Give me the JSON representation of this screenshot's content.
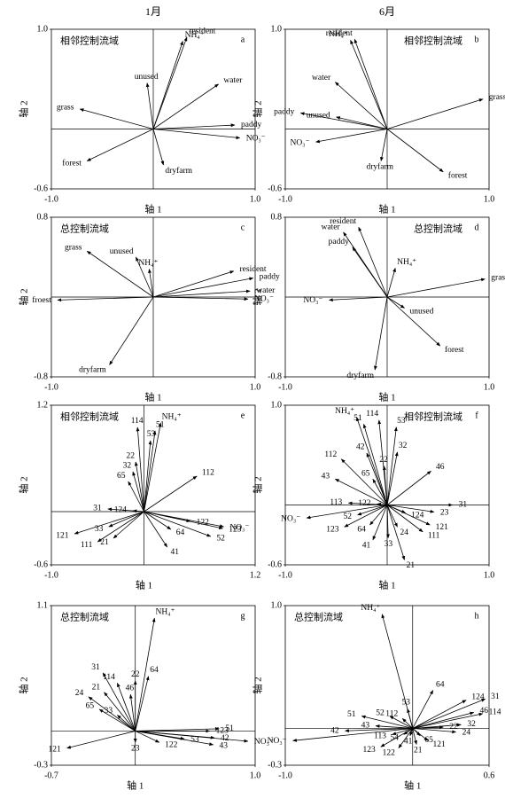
{
  "column_titles": [
    "1月",
    "6月"
  ],
  "chart_data": [
    {
      "type": "biplot",
      "letter": "a",
      "label": "相邻控制流域",
      "label_position": "left",
      "xlabel": "轴 1",
      "ylabel": "轴 2",
      "xlim": [
        -1,
        1
      ],
      "ylim": [
        -0.6,
        1
      ],
      "xticks": [
        {
          "value": -1,
          "label": "-1.0"
        },
        {
          "value": 1,
          "label": "1.0"
        }
      ],
      "yticks": [
        -0.6,
        {
          "value": 1,
          "label": "1.0"
        }
      ],
      "vectors": {
        "labels": [
          "resident",
          "NH₄⁺",
          "water",
          "unused",
          "grass",
          "paddy",
          "NO₃⁻",
          "forest",
          "dryfarm"
        ],
        "x": [
          0.33,
          0.29,
          0.64,
          -0.06,
          -0.72,
          0.8,
          0.85,
          -0.65,
          0.1
        ],
        "y": [
          0.92,
          0.88,
          0.45,
          0.46,
          0.2,
          0.04,
          -0.09,
          -0.32,
          -0.36
        ]
      }
    },
    {
      "type": "biplot",
      "letter": "b",
      "label": "相邻控制流域",
      "label_position": "right",
      "xlabel": "轴 1",
      "ylabel": "轴 2",
      "xlim": [
        -1,
        1
      ],
      "ylim": [
        -0.6,
        1
      ],
      "xticks": [
        {
          "value": -1,
          "label": "-1.0"
        },
        {
          "value": 1,
          "label": "1.0"
        }
      ],
      "yticks": [
        -0.6,
        {
          "value": 1,
          "label": "1.0"
        }
      ],
      "vectors": {
        "labels": [
          "NH₄⁺",
          "resident",
          "water",
          "paddy",
          "unused",
          "grass",
          "NO₃⁻",
          "dryfarm",
          "forest"
        ],
        "x": [
          -0.36,
          -0.32,
          -0.51,
          -0.85,
          -0.5,
          0.94,
          -0.7,
          -0.06,
          0.55
        ],
        "y": [
          0.89,
          0.9,
          0.47,
          0.16,
          0.12,
          0.3,
          -0.13,
          -0.32,
          -0.43
        ]
      }
    },
    {
      "type": "biplot",
      "letter": "c",
      "label": "总控制流域",
      "label_position": "left",
      "xlabel": "轴 1",
      "ylabel": "轴 2",
      "xlim": [
        -1,
        1
      ],
      "ylim": [
        -0.8,
        0.8
      ],
      "xticks": [
        {
          "value": -1,
          "label": "-1.0"
        },
        {
          "value": 1,
          "label": "1.0"
        }
      ],
      "yticks": [
        -0.8,
        0.8
      ],
      "vectors": {
        "labels": [
          "grass",
          "unused",
          "NH₄⁺",
          "resident",
          "paddy",
          "water",
          "NO₃⁻",
          "froest",
          "dryfarm"
        ],
        "x": [
          -0.65,
          -0.17,
          -0.04,
          0.79,
          0.98,
          0.95,
          0.93,
          -0.94,
          -0.43
        ],
        "y": [
          0.46,
          0.4,
          0.28,
          0.26,
          0.19,
          0.06,
          -0.02,
          -0.03,
          -0.68
        ]
      }
    },
    {
      "type": "biplot",
      "letter": "d",
      "label": "总控制流域",
      "label_position": "right",
      "xlabel": "轴 1",
      "ylabel": "轴 2",
      "xlim": [
        -1,
        1
      ],
      "ylim": [
        -0.8,
        0.8
      ],
      "xticks": [
        {
          "value": -1,
          "label": "-1.0"
        },
        {
          "value": 1,
          "label": "1.0"
        }
      ],
      "yticks": [
        -0.8,
        0.8
      ],
      "vectors": {
        "labels": [
          "water",
          "resident",
          "paddy",
          "NH₄⁺",
          "grass",
          "unused",
          "NO₃⁻",
          "forest",
          "dryfarm"
        ],
        "x": [
          -0.43,
          -0.28,
          -0.34,
          0.08,
          0.96,
          0.17,
          -0.57,
          0.52,
          -0.12
        ],
        "y": [
          0.65,
          0.7,
          0.5,
          0.29,
          0.18,
          -0.11,
          -0.03,
          -0.49,
          -0.73
        ]
      }
    },
    {
      "type": "biplot",
      "letter": "e",
      "label": "相邻控制流域",
      "label_position": "left",
      "xlabel": "轴 1",
      "ylabel": "轴 2",
      "xlim": [
        -1,
        1.2
      ],
      "ylim": [
        -0.6,
        1.2
      ],
      "xticks": [
        {
          "value": -1,
          "label": "-1.0"
        },
        1.2
      ],
      "yticks": [
        -0.6,
        1.2
      ],
      "vectors": {
        "labels": [
          "NH₄⁺",
          "51",
          "53",
          "114",
          "22",
          "32",
          "65",
          "112",
          "31",
          "124",
          "121",
          "33",
          "111",
          "21",
          "122",
          "64",
          "123",
          "NO₃⁻",
          "52",
          "41"
        ],
        "x": [
          0.18,
          0.12,
          0.07,
          -0.07,
          -0.09,
          -0.12,
          -0.17,
          0.57,
          -0.39,
          -0.12,
          -0.75,
          -0.38,
          -0.5,
          -0.33,
          0.5,
          0.29,
          0.85,
          0.86,
          0.72,
          0.25
        ],
        "y": [
          1.0,
          0.91,
          0.8,
          0.95,
          0.56,
          0.45,
          0.34,
          0.4,
          0.03,
          0.01,
          -0.25,
          -0.17,
          -0.34,
          -0.3,
          -0.11,
          -0.2,
          -0.19,
          -0.17,
          -0.28,
          -0.4
        ]
      }
    },
    {
      "type": "biplot",
      "letter": "f",
      "label": "相邻控制流域",
      "label_position": "right",
      "xlabel": "轴 1",
      "ylabel": "轴 2",
      "xlim": [
        -1,
        1
      ],
      "ylim": [
        -0.6,
        1
      ],
      "xticks": [
        {
          "value": -1,
          "label": "-1.0"
        },
        {
          "value": 1,
          "label": "1.0"
        }
      ],
      "yticks": [
        -0.6,
        {
          "value": 1,
          "label": "1.0"
        }
      ],
      "vectors": {
        "labels": [
          "NH₄⁺",
          "51",
          "114",
          "53",
          "42",
          "32",
          "22",
          "112",
          "65",
          "43",
          "46",
          "113",
          "122",
          "31",
          "52",
          "NO₃⁻",
          "124",
          "23",
          "121",
          "123",
          "64",
          "24",
          "111",
          "33",
          "41",
          "21"
        ],
        "x": [
          -0.3,
          -0.23,
          -0.08,
          0.09,
          -0.2,
          0.1,
          -0.03,
          -0.45,
          -0.14,
          -0.51,
          0.43,
          -0.38,
          -0.1,
          0.64,
          -0.29,
          -0.79,
          0.18,
          0.46,
          0.42,
          -0.42,
          -0.17,
          0.1,
          0.35,
          0.01,
          -0.14,
          0.17
        ],
        "y": [
          0.88,
          0.81,
          0.85,
          0.78,
          0.52,
          0.53,
          0.39,
          0.46,
          0.26,
          0.26,
          0.34,
          0.02,
          0.01,
          0.0,
          -0.1,
          -0.13,
          -0.08,
          -0.07,
          -0.2,
          -0.22,
          -0.2,
          -0.22,
          -0.27,
          -0.33,
          -0.35,
          -0.55
        ]
      }
    },
    {
      "type": "biplot",
      "letter": "g",
      "label": "总控制流域",
      "label_position": "left",
      "xlabel": "轴 1",
      "ylabel": "轴 2",
      "xlim": [
        -0.7,
        1
      ],
      "ylim": [
        -0.3,
        1.1
      ],
      "xticks": [
        -0.7,
        {
          "value": 1,
          "label": "1.0"
        }
      ],
      "yticks": [
        -0.3,
        1.1
      ],
      "vectors": {
        "labels": [
          "NH₄⁺",
          "64",
          "22",
          "31",
          "114",
          "21",
          "46",
          "24",
          "65",
          "33",
          "121",
          "23",
          "122",
          "53",
          "123",
          "51",
          "42",
          "43",
          "NO₃⁻"
        ],
        "x": [
          0.16,
          0.11,
          0.0,
          -0.27,
          -0.15,
          -0.26,
          -0.04,
          -0.39,
          -0.3,
          -0.15,
          -0.57,
          0.0,
          0.2,
          0.41,
          0.62,
          0.7,
          0.66,
          0.65,
          0.94
        ],
        "y": [
          0.99,
          0.48,
          0.44,
          0.51,
          0.42,
          0.34,
          0.32,
          0.3,
          0.19,
          0.14,
          -0.15,
          -0.1,
          -0.1,
          -0.07,
          0.0,
          0.02,
          -0.06,
          -0.12,
          -0.09
        ]
      }
    },
    {
      "type": "biplot",
      "letter": "h",
      "label": "总控制流域",
      "label_position": "left",
      "xlabel": "轴 1",
      "ylabel": "轴 2",
      "xlim": [
        -1,
        0.6
      ],
      "ylim": [
        -0.3,
        1
      ],
      "xticks": [
        {
          "value": -1,
          "label": "-1.0"
        },
        0.6
      ],
      "yticks": [
        -0.3,
        {
          "value": 1,
          "label": "1.0"
        }
      ],
      "vectors": {
        "labels": [
          "NH₄⁺",
          "64",
          "124",
          "31",
          "46",
          "114",
          "53",
          "52",
          "112",
          "51",
          "43",
          "42",
          "32",
          "24",
          "22",
          "65",
          "113",
          "54",
          "41",
          "121",
          "21",
          "123",
          "122",
          "NO₃⁻"
        ],
        "x": [
          -0.24,
          0.16,
          0.42,
          0.57,
          0.48,
          0.55,
          -0.04,
          -0.18,
          -0.08,
          -0.4,
          -0.29,
          -0.53,
          0.38,
          0.34,
          0.24,
          0.06,
          -0.16,
          -0.07,
          -0.02,
          0.12,
          0.03,
          -0.25,
          -0.11,
          -0.94
        ],
        "y": [
          0.93,
          0.31,
          0.23,
          0.24,
          0.13,
          0.12,
          0.16,
          0.1,
          0.08,
          0.1,
          0.02,
          -0.02,
          0.03,
          -0.03,
          0.01,
          -0.06,
          -0.05,
          -0.05,
          -0.06,
          -0.1,
          -0.13,
          -0.15,
          -0.16,
          -0.1
        ]
      }
    }
  ]
}
